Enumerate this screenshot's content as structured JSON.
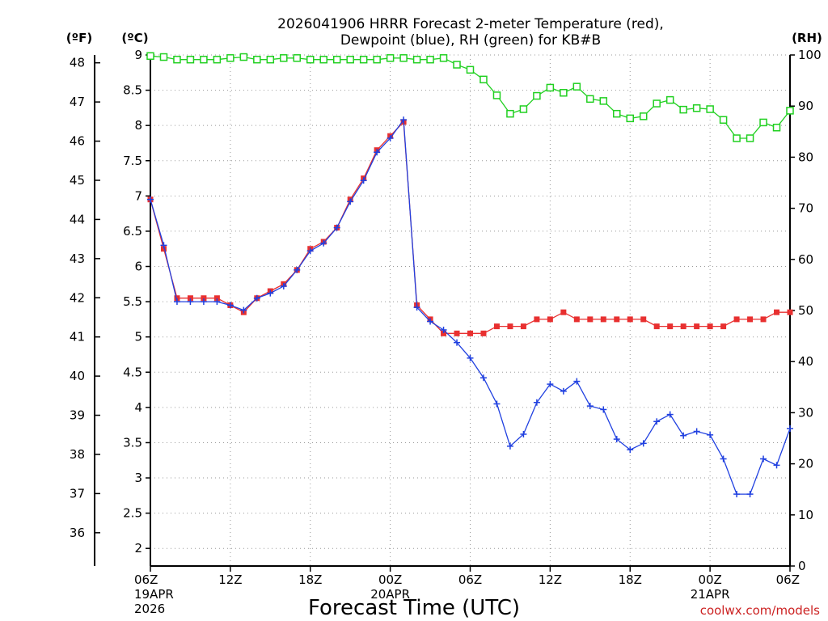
{
  "chart_data": {
    "type": "line",
    "title_line1": "2026041906 HRRR Forecast 2-meter Temperature (red),",
    "title_line2": "Dewpoint (blue), RH (green) for KB#B",
    "xlabel": "Forecast Time (UTC)",
    "credit": "coolwx.com/models",
    "unit_labels": {
      "fahrenheit": "(ºF)",
      "celsius": "(ºC)",
      "rh": "(RH)"
    },
    "x_ticks": [
      {
        "hour": 0,
        "label": "06Z",
        "date": "19APR",
        "year": "2026"
      },
      {
        "hour": 6,
        "label": "12Z"
      },
      {
        "hour": 12,
        "label": "18Z"
      },
      {
        "hour": 18,
        "label": "00Z",
        "date": "20APR"
      },
      {
        "hour": 24,
        "label": "06Z"
      },
      {
        "hour": 30,
        "label": "12Z"
      },
      {
        "hour": 36,
        "label": "18Z"
      },
      {
        "hour": 42,
        "label": "00Z",
        "date": "21APR"
      },
      {
        "hour": 48,
        "label": "06Z"
      }
    ],
    "xlim": [
      0,
      48
    ],
    "celsius_ticks": [
      "9",
      "8.5",
      "8",
      "7.5",
      "7",
      "6.5",
      "6",
      "5.5",
      "5",
      "4.5",
      "4",
      "3.5",
      "3",
      "2.5",
      "2"
    ],
    "ylim_celsius": [
      1.75,
      9.0
    ],
    "fahrenheit_ticks": [
      "48",
      "47",
      "46",
      "45",
      "44",
      "43",
      "42",
      "41",
      "40",
      "39",
      "38",
      "37",
      "36"
    ],
    "rh_ticks": [
      "100",
      "90",
      "80",
      "70",
      "60",
      "50",
      "40",
      "30",
      "20",
      "10",
      "0"
    ],
    "ylim_rh": [
      0,
      100
    ],
    "grid": true,
    "colors": {
      "temperature": "#e83030",
      "dewpoint": "#2040e0",
      "rh": "#20d020"
    },
    "series": [
      {
        "key": "temperature",
        "unit": "C",
        "values": [
          6.95,
          6.25,
          5.55,
          5.55,
          5.55,
          5.55,
          5.45,
          5.35,
          5.55,
          5.65,
          5.75,
          5.95,
          6.25,
          6.35,
          6.55,
          6.95,
          7.25,
          7.65,
          7.85,
          8.05,
          5.45,
          5.25,
          5.05,
          5.05,
          5.05,
          5.05,
          5.15,
          5.15,
          5.15,
          5.25,
          5.25,
          5.35,
          5.25,
          5.25,
          5.25,
          5.25,
          5.25,
          5.25,
          5.15,
          5.15,
          5.15,
          5.15,
          5.15,
          5.15,
          5.25,
          5.25,
          5.25,
          5.35,
          5.35
        ]
      },
      {
        "key": "dewpoint",
        "unit": "C",
        "values": [
          6.95,
          6.3,
          5.5,
          5.5,
          5.5,
          5.5,
          5.45,
          5.38,
          5.55,
          5.62,
          5.72,
          5.95,
          6.22,
          6.33,
          6.55,
          6.92,
          7.22,
          7.62,
          7.82,
          8.08,
          5.42,
          5.22,
          5.1,
          4.92,
          4.7,
          4.42,
          4.05,
          3.45,
          3.62,
          4.07,
          4.33,
          4.23,
          4.37,
          4.02,
          3.97,
          3.55,
          3.4,
          3.49,
          3.8,
          3.9,
          3.6,
          3.66,
          3.61,
          3.27,
          2.77,
          2.77,
          3.27,
          3.18,
          3.7
        ]
      },
      {
        "key": "rh",
        "unit": "%",
        "values": [
          99.8,
          99.6,
          99.1,
          99.1,
          99.1,
          99.1,
          99.4,
          99.6,
          99.1,
          99.1,
          99.4,
          99.4,
          99.1,
          99.1,
          99.1,
          99.1,
          99.1,
          99.1,
          99.4,
          99.4,
          99.1,
          99.1,
          99.4,
          98.1,
          97.1,
          95.2,
          92.1,
          88.5,
          89.4,
          92.0,
          93.6,
          92.6,
          93.8,
          91.4,
          91.0,
          88.5,
          87.6,
          88.0,
          90.5,
          91.2,
          89.3,
          89.6,
          89.4,
          87.3,
          83.7,
          83.7,
          86.8,
          85.8,
          89.1
        ]
      }
    ]
  }
}
